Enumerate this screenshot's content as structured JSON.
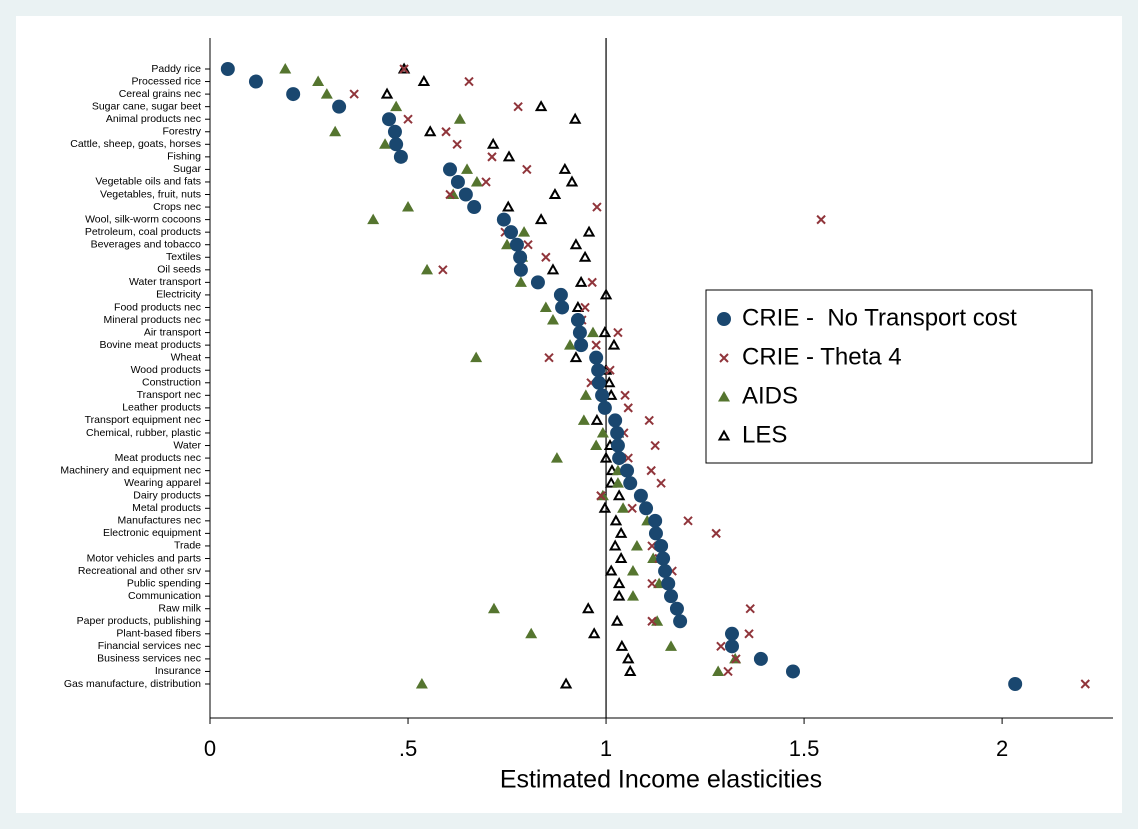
{
  "chart_data": {
    "type": "dot",
    "xlabel": "Estimated Income elasticities",
    "categories": [
      "Paddy rice",
      "Processed rice",
      "Cereal grains nec",
      "Sugar cane, sugar beet",
      "Animal products nec",
      "Forestry",
      "Cattle, sheep, goats, horses",
      "Fishing",
      "Sugar",
      "Vegetable oils and fats",
      "Vegetables, fruit, nuts",
      "Crops nec",
      "Wool, silk-worm cocoons",
      "Petroleum, coal products",
      "Beverages and tobacco",
      "Textiles",
      "Oil seeds",
      "Water transport",
      "Electricity",
      "Food products nec",
      "Mineral products nec",
      "Air transport",
      "Bovine meat products",
      "Wheat",
      "Wood products",
      "Construction",
      "Transport nec",
      "Leather products",
      "Transport equipment nec",
      "Chemical, rubber, plastic",
      "Water",
      "Meat products nec",
      "Machinery and equipment nec",
      "Wearing apparel",
      "Dairy products",
      "Metal products",
      "Manufactures nec",
      "Electronic equipment",
      "Trade",
      "Motor vehicles and parts",
      "Recreational and other srv",
      "Public spending",
      "Communication",
      "Raw milk",
      "Paper products, publishing",
      "Plant-based fibers",
      "Financial services nec",
      "Business services nec",
      "Insurance",
      "Gas manufacture, distribution"
    ],
    "series": [
      {
        "name": "CRIE -  No Transport cost",
        "color": "#1a476f",
        "marker": "circle",
        "values": [
          0.045,
          0.116,
          0.21,
          0.326,
          0.452,
          0.467,
          0.47,
          0.482,
          0.606,
          0.626,
          0.646,
          0.667,
          0.742,
          0.76,
          0.775,
          0.783,
          0.785,
          0.828,
          0.886,
          0.889,
          0.929,
          0.934,
          0.937,
          0.975,
          0.98,
          0.982,
          0.99,
          0.997,
          1.023,
          1.028,
          1.03,
          1.033,
          1.053,
          1.061,
          1.088,
          1.101,
          1.124,
          1.126,
          1.139,
          1.144,
          1.149,
          1.157,
          1.164,
          1.179,
          1.187,
          1.318,
          1.318,
          1.391,
          1.472,
          2.033
        ]
      },
      {
        "name": "CRIE - Theta 4",
        "color": "#90353b",
        "marker": "x",
        "values": [
          0.49,
          0.654,
          0.364,
          0.778,
          0.5,
          0.596,
          0.624,
          0.712,
          0.8,
          0.697,
          0.606,
          0.977,
          1.543,
          0.745,
          0.803,
          0.848,
          0.588,
          0.965,
          null,
          0.947,
          0.939,
          1.03,
          0.975,
          0.856,
          1.01,
          0.962,
          1.048,
          1.056,
          1.109,
          1.045,
          1.124,
          1.056,
          1.114,
          1.139,
          0.987,
          1.066,
          1.207,
          1.278,
          1.116,
          1.134,
          1.167,
          1.116,
          null,
          1.364,
          1.116,
          1.361,
          1.29,
          1.328,
          1.308,
          2.21
        ]
      },
      {
        "name": "AIDS",
        "color": "#55752f",
        "marker": "triangle",
        "values": [
          0.19,
          0.273,
          0.295,
          0.47,
          0.631,
          0.316,
          0.442,
          0.482,
          0.649,
          0.674,
          0.614,
          0.5,
          0.412,
          0.793,
          0.75,
          0.788,
          0.548,
          0.785,
          null,
          0.848,
          0.866,
          0.967,
          0.909,
          0.672,
          null,
          null,
          0.949,
          null,
          0.944,
          0.992,
          0.975,
          0.876,
          1.03,
          1.03,
          0.992,
          1.043,
          1.104,
          null,
          1.078,
          1.119,
          1.068,
          1.134,
          1.068,
          0.717,
          1.129,
          0.811,
          1.164,
          1.326,
          1.283,
          0.535
        ]
      },
      {
        "name": "LES",
        "color": "#000000",
        "marker": "triangle-open",
        "values": [
          0.49,
          0.54,
          0.447,
          0.836,
          0.922,
          0.556,
          0.715,
          0.755,
          0.896,
          0.914,
          0.871,
          0.753,
          0.836,
          0.957,
          0.924,
          0.947,
          0.866,
          0.937,
          1.0,
          0.929,
          null,
          0.997,
          1.02,
          0.924,
          1.0,
          1.008,
          1.013,
          null,
          0.977,
          1.03,
          1.01,
          1.0,
          1.015,
          1.013,
          1.033,
          0.997,
          1.025,
          1.038,
          1.023,
          1.038,
          1.013,
          1.033,
          1.033,
          0.955,
          1.028,
          0.97,
          1.04,
          1.056,
          1.061,
          0.899
        ]
      }
    ],
    "xlim": [
      0,
      2.28
    ],
    "xticks": [
      0,
      {
        "value": 0.5,
        "label": ".5"
      },
      1,
      1.5,
      2
    ],
    "xline": 1,
    "legend": "right"
  }
}
